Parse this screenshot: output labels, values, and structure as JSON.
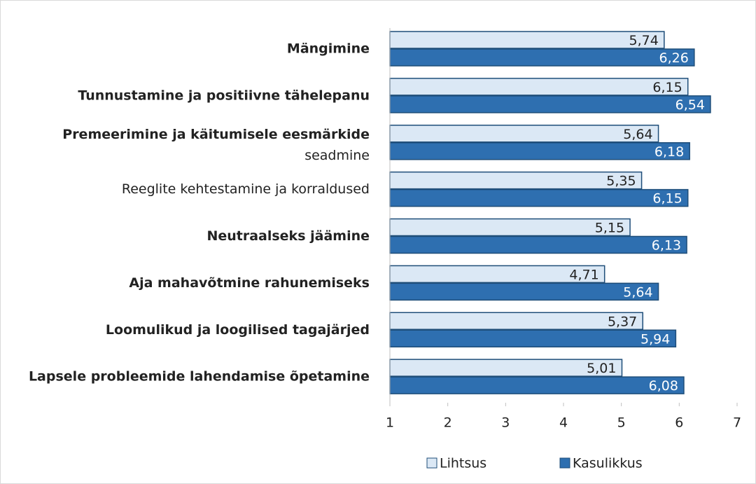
{
  "chart_data": {
    "type": "bar",
    "orientation": "horizontal",
    "categories": [
      "Mängimine",
      "Tunnustamine ja positiivne tähelepanu",
      "Premeerimine ja käitumisele eesmärkide seadmine",
      "Reeglite kehtestamine ja korraldused",
      "Neutraalseks jäämine",
      "Aja mahavõtmine rahunemiseks",
      "Loomulikud ja loogilised tagajärjed",
      "Lapsele probleemide lahendamise õpetamine"
    ],
    "label_bold": [
      true,
      true,
      true,
      false,
      true,
      true,
      true,
      true
    ],
    "series": [
      {
        "name": "Lihtsus",
        "color": "#dbe8f5",
        "values": [
          5.74,
          6.15,
          5.64,
          5.35,
          5.15,
          4.71,
          5.37,
          5.01
        ],
        "value_labels": [
          "5,74",
          "6,15",
          "5,64",
          "5,35",
          "5,15",
          "4,71",
          "5,37",
          "5,01"
        ]
      },
      {
        "name": "Kasulikkus",
        "color": "#2e6fb0",
        "values": [
          6.26,
          6.54,
          6.18,
          6.15,
          6.13,
          5.64,
          5.94,
          6.08
        ],
        "value_labels": [
          "6,26",
          "6,54",
          "6,18",
          "6,15",
          "6,13",
          "5,64",
          "5,94",
          "6,08"
        ]
      }
    ],
    "xlim": [
      1,
      7
    ],
    "xticks": [
      1,
      2,
      3,
      4,
      5,
      6,
      7
    ],
    "grid": false,
    "legend": "bottom"
  }
}
